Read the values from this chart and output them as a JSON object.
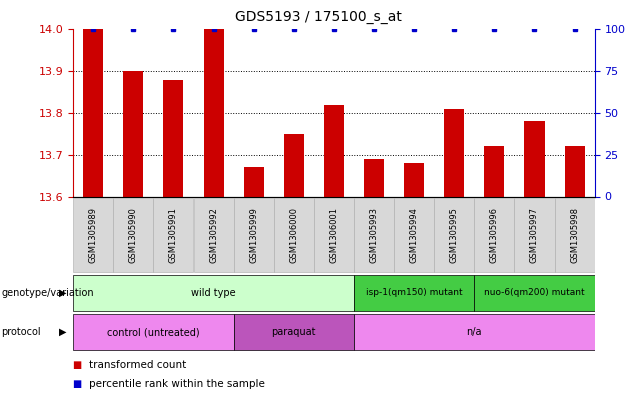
{
  "title": "GDS5193 / 175100_s_at",
  "samples": [
    "GSM1305989",
    "GSM1305990",
    "GSM1305991",
    "GSM1305992",
    "GSM1305999",
    "GSM1306000",
    "GSM1306001",
    "GSM1305993",
    "GSM1305994",
    "GSM1305995",
    "GSM1305996",
    "GSM1305997",
    "GSM1305998"
  ],
  "transformed_counts": [
    14.0,
    13.9,
    13.88,
    14.0,
    13.67,
    13.75,
    13.82,
    13.69,
    13.68,
    13.81,
    13.72,
    13.78,
    13.72
  ],
  "percentile_ranks": [
    100,
    100,
    100,
    100,
    100,
    100,
    100,
    100,
    100,
    100,
    100,
    100,
    100
  ],
  "ylim_left": [
    13.6,
    14.0
  ],
  "ylim_right": [
    0,
    100
  ],
  "yticks_left": [
    13.6,
    13.7,
    13.8,
    13.9,
    14.0
  ],
  "yticks_right": [
    0,
    25,
    50,
    75,
    100
  ],
  "hlines": [
    13.7,
    13.8,
    13.9
  ],
  "bar_color": "#cc0000",
  "dot_color": "#0000cc",
  "bar_width": 0.5,
  "genotype_groups": [
    {
      "label": "wild type",
      "start": 0,
      "end": 6,
      "color": "#ccffcc"
    },
    {
      "label": "isp-1(qm150) mutant",
      "start": 7,
      "end": 9,
      "color": "#44cc44"
    },
    {
      "label": "nuo-6(qm200) mutant",
      "start": 10,
      "end": 12,
      "color": "#44cc44"
    }
  ],
  "protocol_groups": [
    {
      "label": "control (untreated)",
      "start": 0,
      "end": 3,
      "color": "#ee88ee"
    },
    {
      "label": "paraquat",
      "start": 4,
      "end": 6,
      "color": "#bb55bb"
    },
    {
      "label": "n/a",
      "start": 7,
      "end": 12,
      "color": "#ee88ee"
    }
  ],
  "legend_bar_label": "transformed count",
  "legend_dot_label": "percentile rank within the sample",
  "bar_legend_color": "#cc0000",
  "dot_legend_color": "#0000cc",
  "bg_color": "#ffffff",
  "tick_color_left": "#cc0000",
  "tick_color_right": "#0000cc",
  "title_fontsize": 10,
  "tick_fontsize": 8,
  "sample_fontsize": 6,
  "annot_fontsize": 7,
  "legend_fontsize": 7.5
}
